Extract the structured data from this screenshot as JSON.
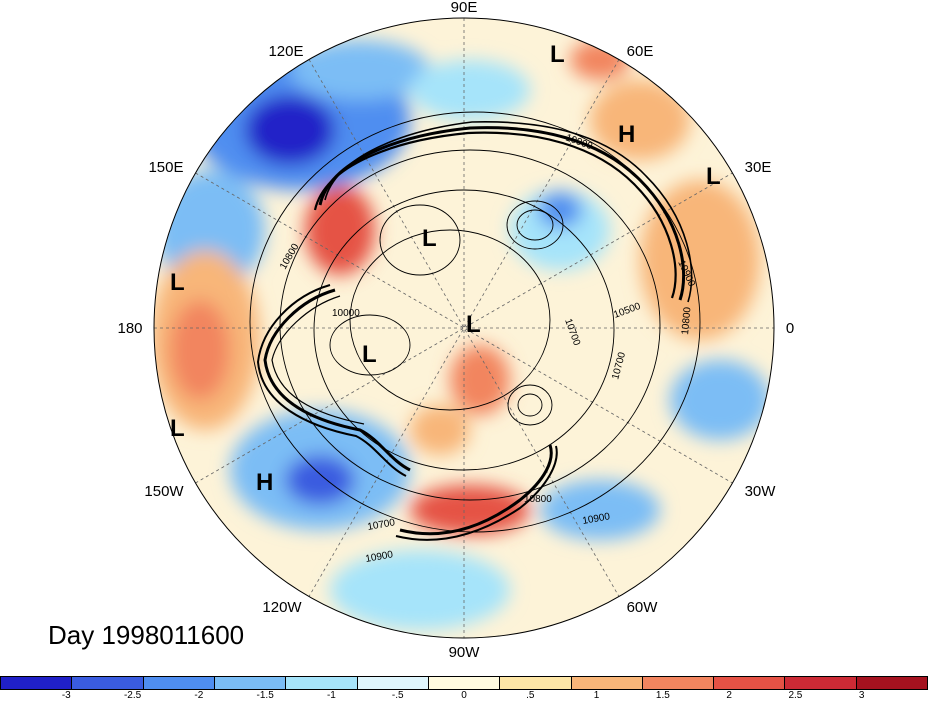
{
  "title": "Day 1998011600",
  "map": {
    "projection": "north-polar-stereographic",
    "longitude_labels": [
      {
        "text": "90E",
        "lon": 90
      },
      {
        "text": "60E",
        "lon": 60
      },
      {
        "text": "30E",
        "lon": 30
      },
      {
        "text": "0",
        "lon": 0
      },
      {
        "text": "30W",
        "lon": -30
      },
      {
        "text": "60W",
        "lon": -60
      },
      {
        "text": "90W",
        "lon": -90
      },
      {
        "text": "120W",
        "lon": -120
      },
      {
        "text": "150W",
        "lon": -150
      },
      {
        "text": "180",
        "lon": 180
      },
      {
        "text": "150E",
        "lon": 150
      },
      {
        "text": "120E",
        "lon": 120
      }
    ],
    "pressure_markers": [
      "L",
      "H",
      "L",
      "L",
      "L",
      "L",
      "L",
      "L",
      "H"
    ],
    "contour_labels": [
      "10900",
      "10800",
      "10000",
      "10700",
      "10900",
      "10800",
      "10900",
      "10700",
      "10900",
      "10800",
      "10500",
      "10700"
    ]
  },
  "colorbar": {
    "colors": [
      "#2020c8",
      "#3a5ce0",
      "#4f8ef0",
      "#7bbdf5",
      "#a6e4fa",
      "#dff6fd",
      "#fffbe0",
      "#fde6a6",
      "#f8b679",
      "#f2855f",
      "#e55245",
      "#cc2a35",
      "#a5121f"
    ],
    "tick_labels": [
      "-3",
      "-2.5",
      "-2",
      "-1.5",
      "-1",
      "-.5",
      "0",
      ".5",
      "1",
      "1.5",
      "2",
      "2.5",
      "3"
    ]
  }
}
